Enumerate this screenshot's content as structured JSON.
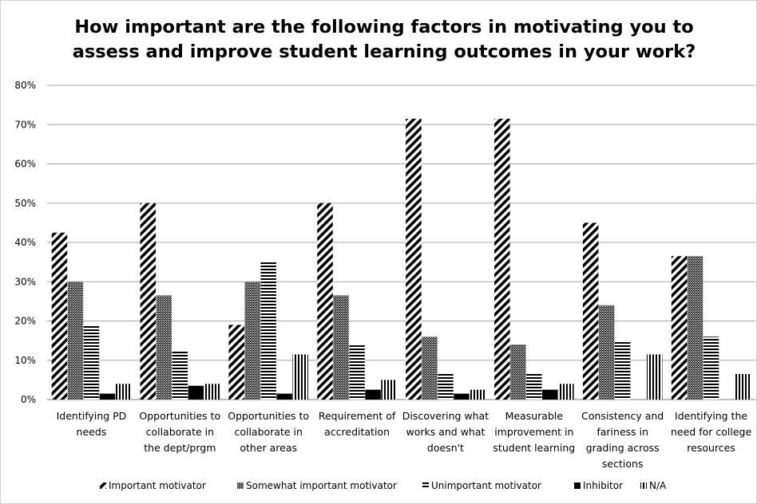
{
  "chart_data": {
    "type": "bar",
    "title_lines": [
      "How important are the following factors in motivating you to",
      "assess and improve student learning outcomes in your work?"
    ],
    "categories": [
      [
        "Identifying PD",
        "needs"
      ],
      [
        "Opportunities to",
        "collaborate in",
        "the dept/prgm"
      ],
      [
        "Opportunities to",
        "collaborate in",
        "other areas"
      ],
      [
        "Requirement of",
        "accreditation"
      ],
      [
        "Discovering what",
        "works and what",
        "doesn't"
      ],
      [
        "Measurable",
        "improvement in",
        "student learning"
      ],
      [
        "Consistency and",
        "fariness in",
        "grading across",
        "sections"
      ],
      [
        "Identifying the",
        "need for college",
        "resources"
      ]
    ],
    "series": [
      {
        "name": "Important motivator",
        "pattern": "diagonal",
        "values": [
          42.5,
          50,
          19,
          50,
          71.5,
          71.5,
          45,
          36.5
        ]
      },
      {
        "name": "Somewhat important motivator",
        "pattern": "crosshatch",
        "values": [
          30,
          26.5,
          30,
          26.5,
          16,
          14,
          24,
          36.5
        ]
      },
      {
        "name": "Unimportant motivator",
        "pattern": "horizontal",
        "values": [
          19,
          12.5,
          35,
          14,
          6.5,
          6.5,
          15,
          16
        ]
      },
      {
        "name": "Inhibitor",
        "pattern": "solid",
        "values": [
          1.5,
          3.5,
          1.5,
          2.5,
          1.5,
          2.5,
          0,
          0
        ]
      },
      {
        "name": "N/A",
        "pattern": "vertical",
        "values": [
          4,
          4,
          11.5,
          5,
          2.5,
          4,
          11.5,
          6.5
        ]
      }
    ],
    "ylim": [
      0,
      80
    ],
    "yticks": [
      "0%",
      "10%",
      "20%",
      "30%",
      "40%",
      "50%",
      "60%",
      "70%",
      "80%"
    ],
    "grid": true,
    "legend_position": "bottom"
  }
}
